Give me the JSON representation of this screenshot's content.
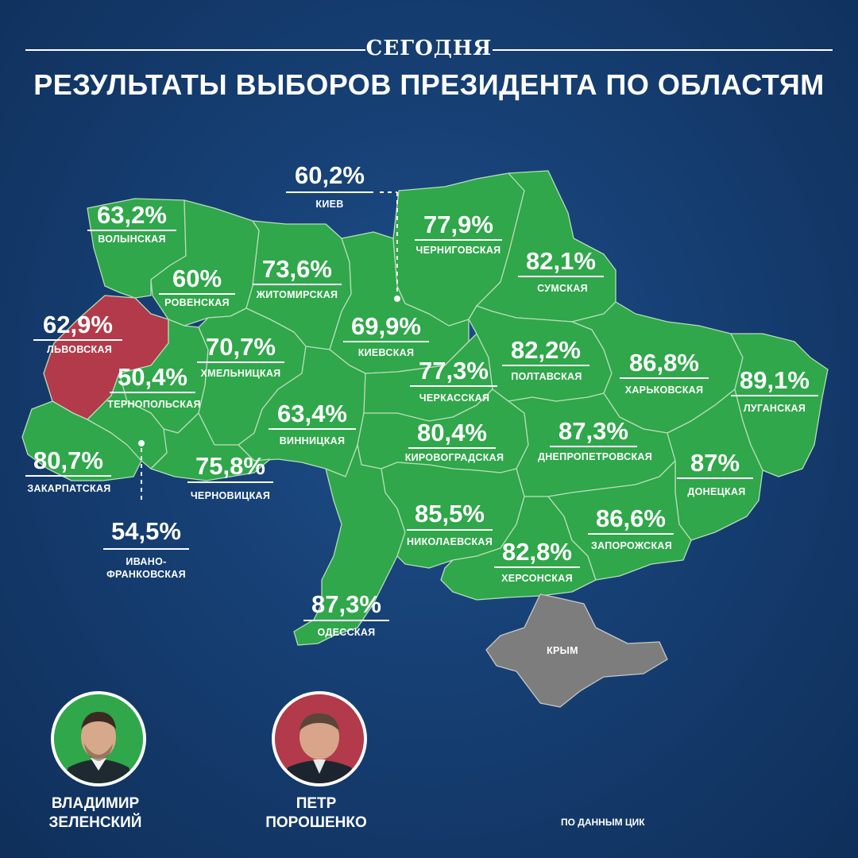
{
  "brand": "СЕГОДНЯ",
  "title": "РЕЗУЛЬТАТЫ ВЫБОРОВ ПРЕЗИДЕНТА ПО ОБЛАСТЯМ",
  "colors": {
    "background": "#163f73",
    "zelensky_won": "#2fa74a",
    "poroshenko_won": "#b23a4a",
    "no_data": "#7d7d7d"
  },
  "regions": {
    "kiev_city": {
      "pct": "60,2%",
      "name": "КИЕВ"
    },
    "volyn": {
      "pct": "63,2%",
      "name": "ВОЛЫНСКАЯ"
    },
    "rivne": {
      "pct": "60%",
      "name": "РОВЕНСКАЯ"
    },
    "zhytomyr": {
      "pct": "73,6%",
      "name": "ЖИТОМИРСКАЯ"
    },
    "chernihiv": {
      "pct": "77,9%",
      "name": "ЧЕРНИГОВСКАЯ"
    },
    "sumy": {
      "pct": "82,1%",
      "name": "СУМСКАЯ"
    },
    "lviv": {
      "pct": "62,9%",
      "name": "ЛЬВОВСКАЯ"
    },
    "kyiv_oblast": {
      "pct": "69,9%",
      "name": "КИЕВСКАЯ"
    },
    "khmelnytskyi": {
      "pct": "70,7%",
      "name": "ХМЕЛЬНИЦКАЯ"
    },
    "ternopil": {
      "pct": "50,4%",
      "name": "ТЕРНОПОЛЬСКАЯ"
    },
    "poltava": {
      "pct": "82,2%",
      "name": "ПОЛТАВСКАЯ"
    },
    "cherkasy": {
      "pct": "77,3%",
      "name": "ЧЕРКАССКАЯ"
    },
    "kharkiv": {
      "pct": "86,8%",
      "name": "ХАРЬКОВСКАЯ"
    },
    "luhansk": {
      "pct": "89,1%",
      "name": "ЛУГАНСКАЯ"
    },
    "vinnytsia": {
      "pct": "63,4%",
      "name": "ВИННИЦКАЯ"
    },
    "kirovohrad": {
      "pct": "80,4%",
      "name": "КИРОВОГРАДСКАЯ"
    },
    "dnipropetrovsk": {
      "pct": "87,3%",
      "name": "ДНЕПРОПЕТРОВСКАЯ"
    },
    "zakarpattia": {
      "pct": "80,7%",
      "name": "ЗАКАРПАТСКАЯ"
    },
    "chernivtsi": {
      "pct": "75,8%",
      "name": "ЧЕРНОВИЦКАЯ"
    },
    "donetsk": {
      "pct": "87%",
      "name": "ДОНЕЦКАЯ"
    },
    "ivano_frankivsk": {
      "pct": "54,5%",
      "name_line1": "ИВАНО-",
      "name_line2": "ФРАНКОВСКАЯ"
    },
    "mykolaiv": {
      "pct": "85,5%",
      "name": "НИКОЛАЕВСКАЯ"
    },
    "zaporizhzhia": {
      "pct": "86,6%",
      "name": "ЗАПОРОЖСКАЯ"
    },
    "kherson": {
      "pct": "82,8%",
      "name": "ХЕРСОНСКАЯ"
    },
    "odesa": {
      "pct": "87,3%",
      "name": "ОДЕССКАЯ"
    },
    "crimea": {
      "name": "КРЫМ"
    }
  },
  "candidates": {
    "zelensky": {
      "line1": "ВЛАДИМИР",
      "line2": "ЗЕЛЕНСКИЙ",
      "ring_color": "#2fa74a"
    },
    "poroshenko": {
      "line1": "ПЕТР",
      "line2": "ПОРОШЕНКО",
      "ring_color": "#b23a4a"
    }
  },
  "source": "ПО ДАННЫМ ЦИК"
}
